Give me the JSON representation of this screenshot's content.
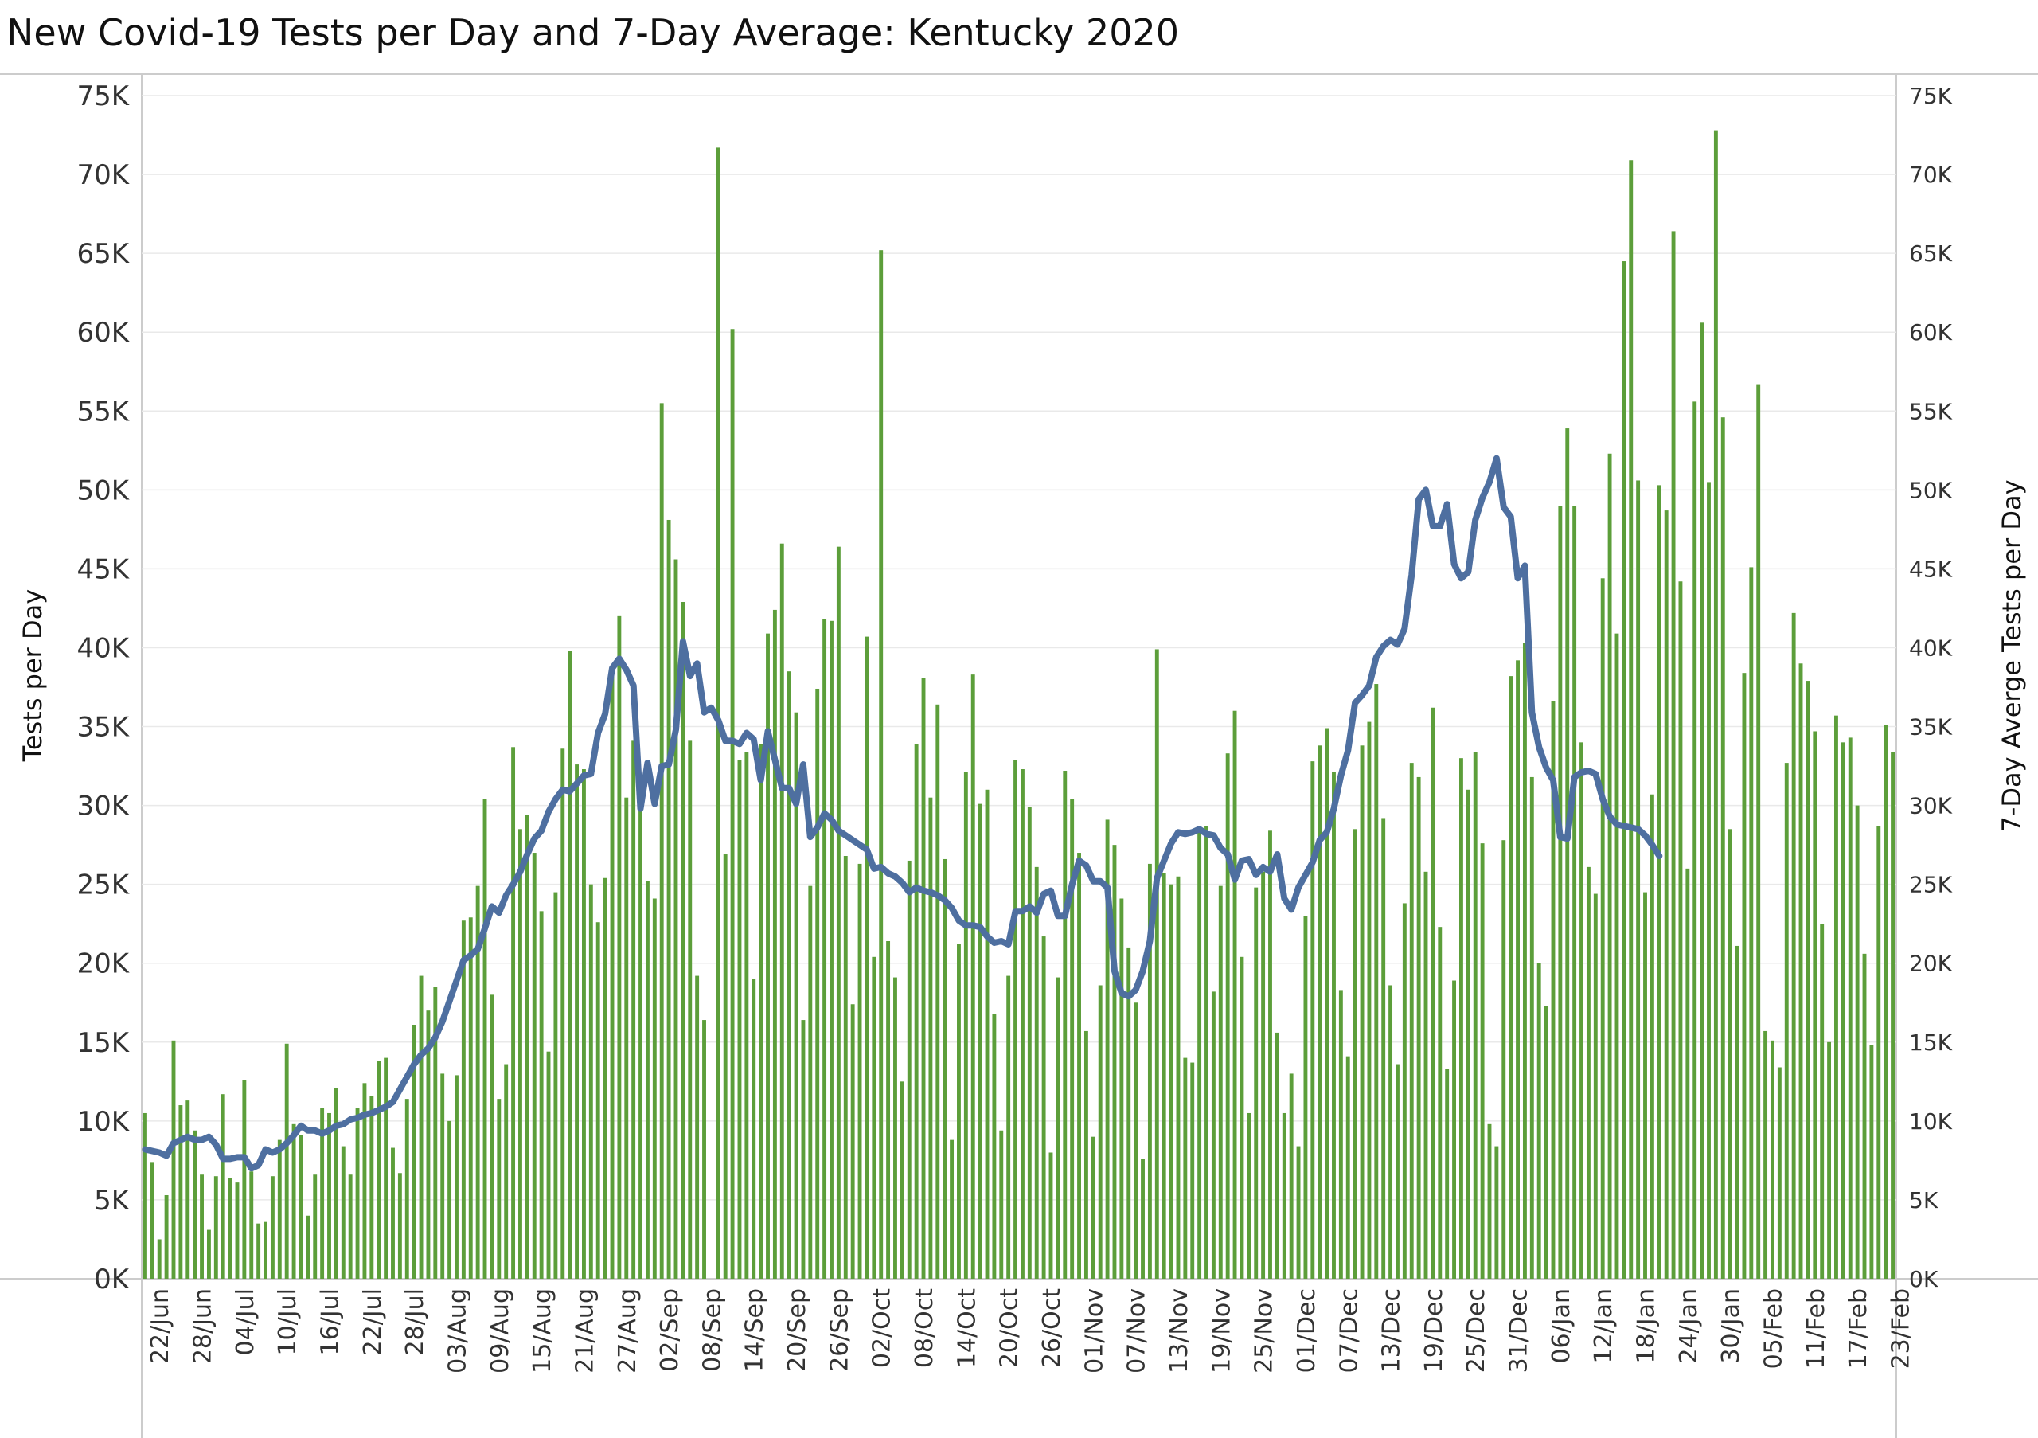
{
  "title": "New Covid-19 Tests per Day and 7-Day Average:  Kentucky 2020",
  "colors": {
    "bars": "#5c9e3a",
    "line": "#4e6fa0",
    "grid": "#e9e9e9",
    "axis": "#cccccc"
  },
  "chart_data": {
    "type": "bar",
    "title": "New Covid-19 Tests per Day and 7-Day Average:  Kentucky 2020",
    "ylabel": "Tests per Day",
    "y2label": "7-Day Averge Tests per Day",
    "ylim": [
      0,
      75000
    ],
    "y_ticks": [
      "0K",
      "5K",
      "10K",
      "15K",
      "20K",
      "25K",
      "30K",
      "35K",
      "40K",
      "45K",
      "50K",
      "55K",
      "60K",
      "65K",
      "70K",
      "75K"
    ],
    "x_start": "20/Jun",
    "x_ticks": [
      {
        "day": 2,
        "label": "22/Jun"
      },
      {
        "day": 8,
        "label": "28/Jun"
      },
      {
        "day": 14,
        "label": "04/Jul"
      },
      {
        "day": 20,
        "label": "10/Jul"
      },
      {
        "day": 26,
        "label": "16/Jul"
      },
      {
        "day": 32,
        "label": "22/Jul"
      },
      {
        "day": 38,
        "label": "28/Jul"
      },
      {
        "day": 44,
        "label": "03/Aug"
      },
      {
        "day": 50,
        "label": "09/Aug"
      },
      {
        "day": 56,
        "label": "15/Aug"
      },
      {
        "day": 62,
        "label": "21/Aug"
      },
      {
        "day": 68,
        "label": "27/Aug"
      },
      {
        "day": 74,
        "label": "02/Sep"
      },
      {
        "day": 80,
        "label": "08/Sep"
      },
      {
        "day": 86,
        "label": "14/Sep"
      },
      {
        "day": 92,
        "label": "20/Sep"
      },
      {
        "day": 98,
        "label": "26/Sep"
      },
      {
        "day": 104,
        "label": "02/Oct"
      },
      {
        "day": 110,
        "label": "08/Oct"
      },
      {
        "day": 116,
        "label": "14/Oct"
      },
      {
        "day": 122,
        "label": "20/Oct"
      },
      {
        "day": 128,
        "label": "26/Oct"
      },
      {
        "day": 134,
        "label": "01/Nov"
      },
      {
        "day": 140,
        "label": "07/Nov"
      },
      {
        "day": 146,
        "label": "13/Nov"
      },
      {
        "day": 152,
        "label": "19/Nov"
      },
      {
        "day": 158,
        "label": "25/Nov"
      },
      {
        "day": 164,
        "label": "01/Dec"
      },
      {
        "day": 170,
        "label": "07/Dec"
      },
      {
        "day": 176,
        "label": "13/Dec"
      },
      {
        "day": 182,
        "label": "19/Dec"
      },
      {
        "day": 188,
        "label": "25/Dec"
      },
      {
        "day": 194,
        "label": "31/Dec"
      },
      {
        "day": 200,
        "label": "06/Jan"
      },
      {
        "day": 206,
        "label": "12/Jan"
      },
      {
        "day": 212,
        "label": "18/Jan"
      },
      {
        "day": 218,
        "label": "24/Jan"
      },
      {
        "day": 224,
        "label": "30/Jan"
      },
      {
        "day": 230,
        "label": "05/Feb"
      },
      {
        "day": 236,
        "label": "11/Feb"
      },
      {
        "day": 242,
        "label": "17/Feb"
      },
      {
        "day": 248,
        "label": "23/Feb"
      }
    ],
    "series": [
      {
        "name": "Tests per Day",
        "type": "bar",
        "values": [
          10500,
          7400,
          2500,
          5300,
          15100,
          11000,
          11300,
          9400,
          6600,
          3100,
          6500,
          11700,
          6400,
          6100,
          12600,
          6800,
          3500,
          3600,
          6500,
          8800,
          14900,
          9800,
          9100,
          4000,
          6600,
          10800,
          10500,
          12100,
          8400,
          6600,
          10800,
          12400,
          11600,
          13800,
          14000,
          8300,
          6700,
          11400,
          16100,
          19200,
          17000,
          18500,
          13000,
          10000,
          12900,
          22700,
          22900,
          24900,
          30400,
          18000,
          11400,
          13600,
          33700,
          28500,
          29400,
          27000,
          23300,
          14400,
          24500,
          33600,
          39800,
          32600,
          32300,
          25000,
          22600,
          25400,
          38500,
          42000,
          30500,
          34100,
          30500,
          25200,
          24100,
          55500,
          48100,
          45600,
          42900,
          34100,
          19200,
          16400,
          0,
          71700,
          26900,
          60200,
          32900,
          33400,
          19000,
          33900,
          40900,
          42400,
          46600,
          38500,
          35900,
          16400,
          24900,
          37400,
          41800,
          41700,
          46400,
          26800,
          17400,
          26300,
          40700,
          20400,
          65200,
          21400,
          19100,
          12500,
          26500,
          33900,
          38100,
          30500,
          36400,
          26600,
          8800,
          21200,
          32100,
          38300,
          30100,
          31000,
          16800,
          9400,
          19200,
          32900,
          32300,
          29900,
          26100,
          21700,
          8000,
          19100,
          32200,
          30400,
          27000,
          15700,
          9000,
          18600,
          29100,
          27500,
          24100,
          21000,
          17500,
          7600,
          26300,
          39900,
          25700,
          25000,
          25500,
          14000,
          13700,
          28400,
          28700,
          18200,
          24900,
          33300,
          36000,
          20400,
          10500,
          24800,
          25800,
          28400,
          15600,
          10500,
          13000,
          8400,
          23000,
          32800,
          33800,
          34900,
          32100,
          18300,
          14100,
          28500,
          33800,
          35300,
          37700,
          29200,
          18600,
          13600,
          23800,
          32700,
          31800,
          25800,
          36200,
          22300,
          13300,
          18900,
          33000,
          31000,
          33400,
          27600,
          9800,
          8400,
          27800,
          38200,
          39200,
          40300,
          31800,
          20000,
          17300,
          36600,
          49000,
          53900,
          49000,
          34000,
          26100,
          24400,
          44400,
          52300,
          40900,
          64500,
          70900,
          50600,
          24500,
          30700,
          50300,
          48700,
          66400,
          44200,
          26000,
          55600,
          60600,
          50500,
          72800,
          54600,
          28500,
          21100,
          38400,
          45100,
          56700,
          15700,
          15100,
          13400,
          32700,
          42200,
          39000,
          37900,
          34700,
          22500,
          15000,
          35700,
          34000,
          34300,
          30000,
          20600,
          14800,
          28700,
          35100,
          33400
        ]
      },
      {
        "name": "7-Day Averge Tests per Day",
        "type": "line",
        "values": [
          8200,
          8100,
          8000,
          7800,
          8600,
          8800,
          9000,
          8800,
          8800,
          9000,
          8500,
          7600,
          7600,
          7700,
          7700,
          7000,
          7200,
          8200,
          8000,
          8200,
          8600,
          9100,
          9700,
          9400,
          9400,
          9200,
          9400,
          9700,
          9800,
          10100,
          10200,
          10400,
          10500,
          10700,
          10900,
          11200,
          12000,
          12800,
          13600,
          14200,
          14600,
          15300,
          16300,
          17600,
          18900,
          20200,
          20500,
          20900,
          22200,
          23600,
          23200,
          24300,
          25000,
          25800,
          26900,
          27900,
          28400,
          29600,
          30400,
          31000,
          30900,
          31400,
          31900,
          32000,
          34600,
          35800,
          38700,
          39300,
          38600,
          37600,
          29800,
          32700,
          30100,
          32500,
          32600,
          34800,
          40400,
          38200,
          39000,
          35900,
          36200,
          35400,
          34100,
          34100,
          33900,
          34600,
          34200,
          31600,
          34700,
          32900,
          31100,
          31100,
          30100,
          32600,
          28000,
          28600,
          29500,
          29100,
          28400,
          28100,
          27800,
          27500,
          27200,
          26000,
          26100,
          25700,
          25500,
          25100,
          24500,
          24800,
          24600,
          24500,
          24300,
          24000,
          23500,
          22700,
          22400,
          22400,
          22300,
          21700,
          21300,
          21400,
          21200,
          23300,
          23300,
          23600,
          23200,
          24400,
          24600,
          23000,
          23000,
          25000,
          26500,
          26200,
          25200,
          25200,
          24800,
          19500,
          18100,
          17900,
          18300,
          19500,
          21400,
          25400,
          26500,
          27600,
          28300,
          28200,
          28300,
          28500,
          28200,
          28100,
          27300,
          26900,
          25300,
          26500,
          26600,
          25600,
          26100,
          25800,
          26900,
          24100,
          23400,
          24800,
          25600,
          26400,
          27800,
          28300,
          29800,
          31900,
          33500,
          36500,
          37000,
          37600,
          39400,
          40100,
          40500,
          40200,
          41200,
          44600,
          49400,
          50000,
          47700,
          47700,
          49100,
          45300,
          44400,
          44800,
          48100,
          49500,
          50500,
          52000,
          48900,
          48300,
          44400,
          45200,
          35900,
          33700,
          32400,
          31600,
          28000,
          27900,
          31800,
          32100,
          32200,
          32000,
          30400,
          29300,
          28800,
          28700,
          28600,
          28500,
          28100,
          27500,
          26800
        ]
      }
    ]
  }
}
